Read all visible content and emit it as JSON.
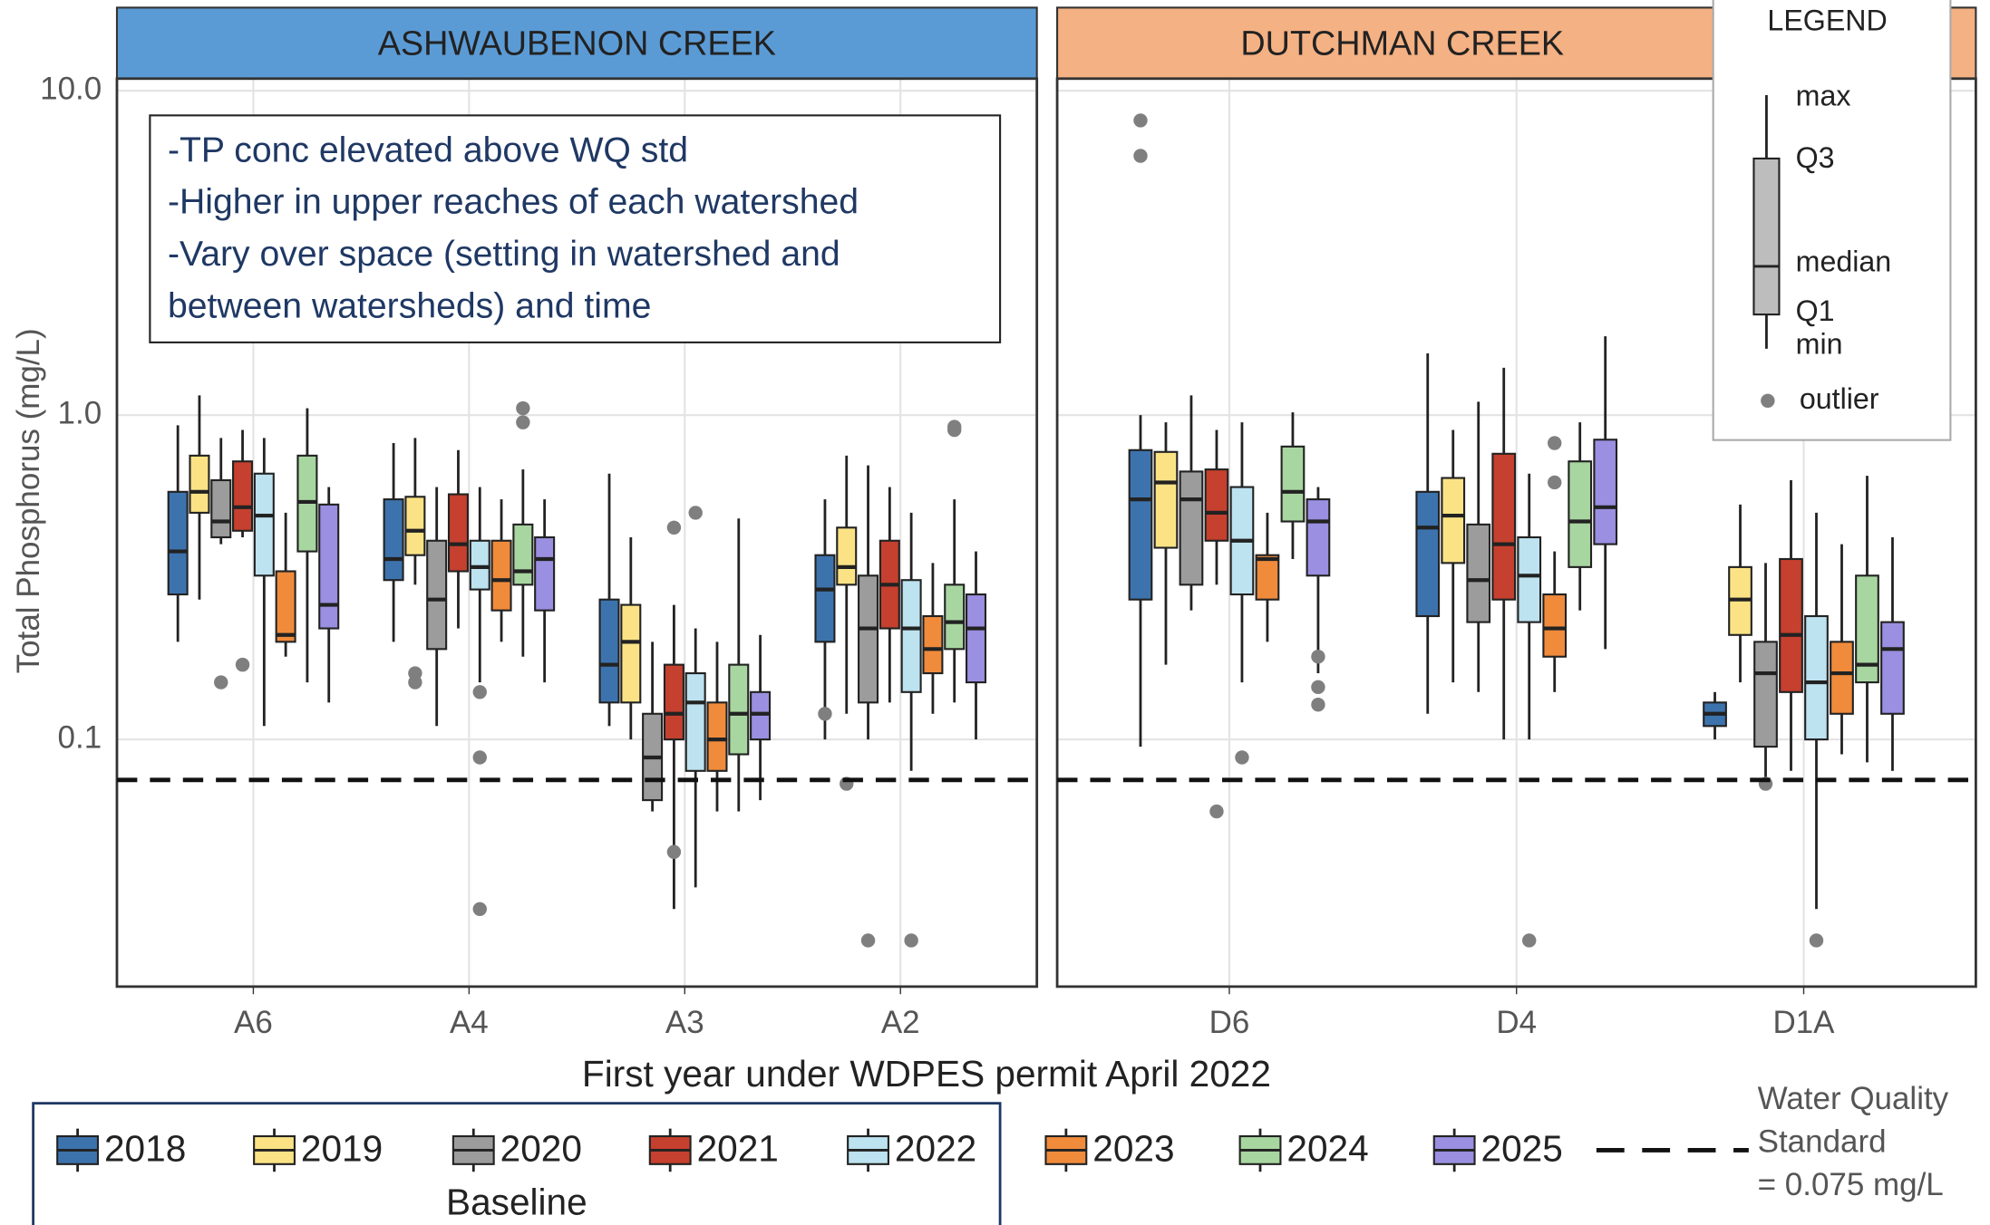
{
  "chart_data": {
    "type": "box",
    "y_axis_label": "Total Phosphorus (mg/L)",
    "log_scale": true,
    "grid": true,
    "ylim": [
      0.0173,
      10.9
    ],
    "yticks": [
      0.1,
      {
        "value": 1,
        "label": "1.0"
      },
      {
        "value": 10,
        "label": "10.0"
      }
    ],
    "annotation": [
      "-TP conc elevated above WQ std",
      "-Higher in upper reaches of each watershed",
      "-Vary over space (setting in watershed and",
      "between watersheds) and time"
    ],
    "x_note": "First year under WDPES permit April 2022",
    "baseline_label": "Baseline",
    "reference_line": {
      "value": 0.075,
      "label": [
        "Water Quality",
        "Standard",
        "= 0.075 mg/L"
      ]
    },
    "legend_key": {
      "title": "LEGEND",
      "labels": [
        "max",
        "Q3",
        "median",
        "Q1",
        "min",
        "outlier"
      ]
    },
    "series": [
      {
        "name": "2018",
        "color": "#3d73ad"
      },
      {
        "name": "2019",
        "color": "#fbe385"
      },
      {
        "name": "2020",
        "color": "#9c9c9c"
      },
      {
        "name": "2021",
        "color": "#c5402e"
      },
      {
        "name": "2022",
        "color": "#bde2f0"
      },
      {
        "name": "2023",
        "color": "#f08b3c"
      },
      {
        "name": "2024",
        "color": "#a8d6a0"
      },
      {
        "name": "2025",
        "color": "#9a8fe0"
      }
    ],
    "facets": [
      {
        "title": "ASHWAUBENON CREEK",
        "color": "#5b9bd5",
        "sites": [
          {
            "name": "A6",
            "boxes": [
              {
                "min": 0.2,
                "q1": 0.28,
                "median": 0.38,
                "q3": 0.58,
                "max": 0.93,
                "outliers": []
              },
              {
                "min": 0.27,
                "q1": 0.5,
                "median": 0.58,
                "q3": 0.75,
                "max": 1.15,
                "outliers": []
              },
              {
                "min": 0.4,
                "q1": 0.42,
                "median": 0.47,
                "q3": 0.63,
                "max": 0.85,
                "outliers": [
                  0.15
                ]
              },
              {
                "min": 0.42,
                "q1": 0.44,
                "median": 0.52,
                "q3": 0.72,
                "max": 0.9,
                "outliers": [
                  0.17
                ]
              },
              {
                "min": 0.11,
                "q1": 0.32,
                "median": 0.49,
                "q3": 0.66,
                "max": 0.85,
                "outliers": []
              },
              {
                "min": 0.18,
                "q1": 0.2,
                "median": 0.21,
                "q3": 0.33,
                "max": 0.5,
                "outliers": []
              },
              {
                "min": 0.15,
                "q1": 0.38,
                "median": 0.54,
                "q3": 0.75,
                "max": 1.05,
                "outliers": []
              },
              {
                "min": 0.13,
                "q1": 0.22,
                "median": 0.26,
                "q3": 0.53,
                "max": 0.6,
                "outliers": []
              }
            ]
          },
          {
            "name": "A4",
            "boxes": [
              {
                "min": 0.2,
                "q1": 0.31,
                "median": 0.36,
                "q3": 0.55,
                "max": 0.82,
                "outliers": []
              },
              {
                "min": 0.3,
                "q1": 0.37,
                "median": 0.44,
                "q3": 0.56,
                "max": 0.85,
                "outliers": [
                  0.15,
                  0.16
                ]
              },
              {
                "min": 0.11,
                "q1": 0.19,
                "median": 0.27,
                "q3": 0.41,
                "max": 0.6,
                "outliers": []
              },
              {
                "min": 0.22,
                "q1": 0.33,
                "median": 0.4,
                "q3": 0.57,
                "max": 0.78,
                "outliers": []
              },
              {
                "min": 0.15,
                "q1": 0.29,
                "median": 0.34,
                "q3": 0.41,
                "max": 0.6,
                "outliers": [
                  0.14,
                  0.088,
                  0.03
                ]
              },
              {
                "min": 0.2,
                "q1": 0.25,
                "median": 0.31,
                "q3": 0.41,
                "max": 0.55,
                "outliers": []
              },
              {
                "min": 0.18,
                "q1": 0.3,
                "median": 0.33,
                "q3": 0.46,
                "max": 0.68,
                "outliers": [
                  1.05,
                  0.95
                ]
              },
              {
                "min": 0.15,
                "q1": 0.25,
                "median": 0.36,
                "q3": 0.42,
                "max": 0.55,
                "outliers": []
              }
            ]
          },
          {
            "name": "A3",
            "boxes": [
              {
                "min": 0.11,
                "q1": 0.13,
                "median": 0.17,
                "q3": 0.27,
                "max": 0.66,
                "outliers": []
              },
              {
                "min": 0.1,
                "q1": 0.13,
                "median": 0.2,
                "q3": 0.26,
                "max": 0.42,
                "outliers": []
              },
              {
                "min": 0.06,
                "q1": 0.065,
                "median": 0.088,
                "q3": 0.12,
                "max": 0.2,
                "outliers": []
              },
              {
                "min": 0.03,
                "q1": 0.1,
                "median": 0.12,
                "q3": 0.17,
                "max": 0.26,
                "outliers": [
                  0.45,
                  0.045
                ]
              },
              {
                "min": 0.035,
                "q1": 0.08,
                "median": 0.13,
                "q3": 0.16,
                "max": 0.22,
                "outliers": [
                  0.5
                ]
              },
              {
                "min": 0.06,
                "q1": 0.08,
                "median": 0.1,
                "q3": 0.13,
                "max": 0.2,
                "outliers": []
              },
              {
                "min": 0.06,
                "q1": 0.09,
                "median": 0.12,
                "q3": 0.17,
                "max": 0.48,
                "outliers": []
              },
              {
                "min": 0.065,
                "q1": 0.1,
                "median": 0.12,
                "q3": 0.14,
                "max": 0.21,
                "outliers": []
              }
            ]
          },
          {
            "name": "A2",
            "boxes": [
              {
                "min": 0.1,
                "q1": 0.2,
                "median": 0.29,
                "q3": 0.37,
                "max": 0.55,
                "outliers": [
                  0.12
                ]
              },
              {
                "min": 0.12,
                "q1": 0.3,
                "median": 0.34,
                "q3": 0.45,
                "max": 0.75,
                "outliers": [
                  0.073
                ]
              },
              {
                "min": 0.1,
                "q1": 0.13,
                "median": 0.22,
                "q3": 0.32,
                "max": 0.7,
                "outliers": [
                  0.024
                ]
              },
              {
                "min": 0.13,
                "q1": 0.22,
                "median": 0.3,
                "q3": 0.41,
                "max": 0.6,
                "outliers": []
              },
              {
                "min": 0.08,
                "q1": 0.14,
                "median": 0.22,
                "q3": 0.31,
                "max": 0.5,
                "outliers": [
                  0.024
                ]
              },
              {
                "min": 0.12,
                "q1": 0.16,
                "median": 0.19,
                "q3": 0.24,
                "max": 0.35,
                "outliers": []
              },
              {
                "min": 0.13,
                "q1": 0.19,
                "median": 0.23,
                "q3": 0.3,
                "max": 0.55,
                "outliers": [
                  0.9,
                  0.92
                ]
              },
              {
                "min": 0.1,
                "q1": 0.15,
                "median": 0.22,
                "q3": 0.28,
                "max": 0.38,
                "outliers": []
              }
            ]
          }
        ]
      },
      {
        "title": "DUTCHMAN CREEK",
        "color": "#f4b183",
        "sites": [
          {
            "name": "D6",
            "boxes": [
              {
                "min": 0.095,
                "q1": 0.27,
                "median": 0.55,
                "q3": 0.78,
                "max": 1.0,
                "outliers": [
                  8.1,
                  6.3
                ]
              },
              {
                "min": 0.17,
                "q1": 0.39,
                "median": 0.62,
                "q3": 0.77,
                "max": 0.95,
                "outliers": []
              },
              {
                "min": 0.25,
                "q1": 0.3,
                "median": 0.55,
                "q3": 0.67,
                "max": 1.15,
                "outliers": []
              },
              {
                "min": 0.3,
                "q1": 0.41,
                "median": 0.5,
                "q3": 0.68,
                "max": 0.9,
                "outliers": [
                  0.06
                ]
              },
              {
                "min": 0.15,
                "q1": 0.28,
                "median": 0.41,
                "q3": 0.6,
                "max": 0.95,
                "outliers": [
                  0.088
                ]
              },
              {
                "min": 0.2,
                "q1": 0.27,
                "median": 0.36,
                "q3": 0.37,
                "max": 0.5,
                "outliers": []
              },
              {
                "min": 0.36,
                "q1": 0.47,
                "median": 0.58,
                "q3": 0.8,
                "max": 1.02,
                "outliers": []
              },
              {
                "min": 0.16,
                "q1": 0.32,
                "median": 0.47,
                "q3": 0.55,
                "max": 0.6,
                "outliers": [
                  0.18,
                  0.145,
                  0.128
                ]
              }
            ]
          },
          {
            "name": "D4",
            "boxes": [
              {
                "min": 0.12,
                "q1": 0.24,
                "median": 0.45,
                "q3": 0.58,
                "max": 1.55,
                "outliers": []
              },
              {
                "min": 0.15,
                "q1": 0.35,
                "median": 0.49,
                "q3": 0.64,
                "max": 0.9,
                "outliers": []
              },
              {
                "min": 0.14,
                "q1": 0.23,
                "median": 0.31,
                "q3": 0.46,
                "max": 1.1,
                "outliers": []
              },
              {
                "min": 0.1,
                "q1": 0.27,
                "median": 0.4,
                "q3": 0.76,
                "max": 1.4,
                "outliers": []
              },
              {
                "min": 0.1,
                "q1": 0.23,
                "median": 0.32,
                "q3": 0.42,
                "max": 0.66,
                "outliers": [
                  0.024
                ]
              },
              {
                "min": 0.14,
                "q1": 0.18,
                "median": 0.22,
                "q3": 0.28,
                "max": 0.38,
                "outliers": [
                  0.82,
                  0.62
                ]
              },
              {
                "min": 0.25,
                "q1": 0.34,
                "median": 0.47,
                "q3": 0.72,
                "max": 0.95,
                "outliers": []
              },
              {
                "min": 0.19,
                "q1": 0.4,
                "median": 0.52,
                "q3": 0.84,
                "max": 1.75,
                "outliers": []
              }
            ]
          },
          {
            "name": "D1A",
            "boxes": [
              {
                "min": 0.1,
                "q1": 0.11,
                "median": 0.12,
                "q3": 0.13,
                "max": 0.14,
                "outliers": []
              },
              {
                "min": 0.15,
                "q1": 0.21,
                "median": 0.27,
                "q3": 0.34,
                "max": 0.53,
                "outliers": []
              },
              {
                "min": 0.07,
                "q1": 0.095,
                "median": 0.16,
                "q3": 0.2,
                "max": 0.35,
                "outliers": [
                  0.073
                ]
              },
              {
                "min": 0.08,
                "q1": 0.14,
                "median": 0.21,
                "q3": 0.36,
                "max": 0.63,
                "outliers": []
              },
              {
                "min": 0.03,
                "q1": 0.1,
                "median": 0.15,
                "q3": 0.24,
                "max": 0.5,
                "outliers": [
                  0.024
                ]
              },
              {
                "min": 0.09,
                "q1": 0.12,
                "median": 0.16,
                "q3": 0.2,
                "max": 0.4,
                "outliers": []
              },
              {
                "min": 0.085,
                "q1": 0.15,
                "median": 0.17,
                "q3": 0.32,
                "max": 0.65,
                "outliers": []
              },
              {
                "min": 0.08,
                "q1": 0.12,
                "median": 0.19,
                "q3": 0.23,
                "max": 0.42,
                "outliers": []
              }
            ]
          }
        ]
      }
    ]
  }
}
